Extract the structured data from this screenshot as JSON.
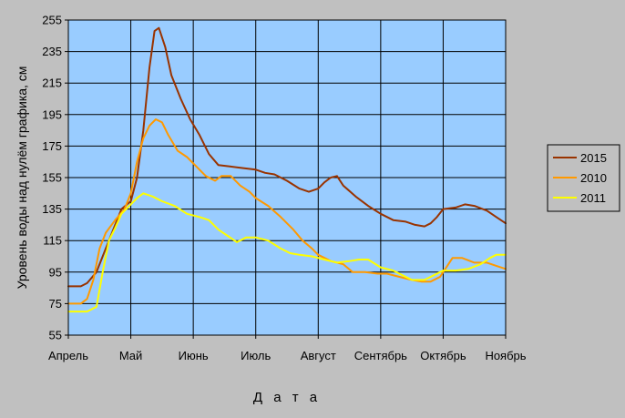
{
  "chart_data": {
    "type": "line",
    "xlabel": "Д а т а",
    "ylabel": "Уровень воды над нулём графика, см",
    "ylim": [
      55,
      255
    ],
    "yticks": [
      55,
      75,
      95,
      115,
      135,
      155,
      175,
      195,
      215,
      235,
      255
    ],
    "xlim": [
      0,
      7
    ],
    "xticks": [
      {
        "value": 0,
        "label": "Апрель"
      },
      {
        "value": 1,
        "label": "Май"
      },
      {
        "value": 2,
        "label": "Июнь"
      },
      {
        "value": 3,
        "label": "Июль"
      },
      {
        "value": 4,
        "label": "Август"
      },
      {
        "value": 5,
        "label": "Сентябрь"
      },
      {
        "value": 6,
        "label": "Октябрь"
      },
      {
        "value": 7,
        "label": "Ноябрь"
      }
    ],
    "grid": true,
    "legend_position": "right",
    "colors": {
      "page_bg": "#c0c0c0",
      "plot_bg": "#99ccff",
      "grid": "#000000"
    },
    "series": [
      {
        "name": "2015",
        "color": "#993300",
        "points": [
          [
            0,
            86
          ],
          [
            0.2,
            86
          ],
          [
            0.3,
            88
          ],
          [
            0.45,
            95
          ],
          [
            0.6,
            110
          ],
          [
            0.75,
            125
          ],
          [
            0.85,
            135
          ],
          [
            1.0,
            140
          ],
          [
            1.1,
            155
          ],
          [
            1.2,
            185
          ],
          [
            1.3,
            225
          ],
          [
            1.38,
            248
          ],
          [
            1.45,
            250
          ],
          [
            1.55,
            238
          ],
          [
            1.65,
            220
          ],
          [
            1.8,
            205
          ],
          [
            1.95,
            192
          ],
          [
            2.1,
            182
          ],
          [
            2.25,
            170
          ],
          [
            2.4,
            163
          ],
          [
            2.6,
            162
          ],
          [
            2.8,
            161
          ],
          [
            3.0,
            160
          ],
          [
            3.15,
            158
          ],
          [
            3.3,
            157
          ],
          [
            3.5,
            153
          ],
          [
            3.7,
            148
          ],
          [
            3.85,
            146
          ],
          [
            4.0,
            148
          ],
          [
            4.1,
            152
          ],
          [
            4.2,
            155
          ],
          [
            4.3,
            156
          ],
          [
            4.4,
            150
          ],
          [
            4.6,
            143
          ],
          [
            4.8,
            137
          ],
          [
            5.0,
            132
          ],
          [
            5.2,
            128
          ],
          [
            5.4,
            127
          ],
          [
            5.55,
            125
          ],
          [
            5.7,
            124
          ],
          [
            5.8,
            126
          ],
          [
            5.9,
            130
          ],
          [
            6.0,
            135
          ],
          [
            6.2,
            136
          ],
          [
            6.35,
            138
          ],
          [
            6.5,
            137
          ],
          [
            6.7,
            134
          ],
          [
            6.85,
            130
          ],
          [
            7.0,
            126
          ]
        ]
      },
      {
        "name": "2010",
        "color": "#ff9900",
        "points": [
          [
            0,
            75
          ],
          [
            0.2,
            75
          ],
          [
            0.3,
            78
          ],
          [
            0.4,
            90
          ],
          [
            0.5,
            110
          ],
          [
            0.6,
            120
          ],
          [
            0.75,
            128
          ],
          [
            0.9,
            135
          ],
          [
            1.0,
            145
          ],
          [
            1.1,
            165
          ],
          [
            1.2,
            180
          ],
          [
            1.3,
            188
          ],
          [
            1.4,
            192
          ],
          [
            1.5,
            190
          ],
          [
            1.6,
            182
          ],
          [
            1.75,
            172
          ],
          [
            1.9,
            168
          ],
          [
            2.05,
            162
          ],
          [
            2.2,
            156
          ],
          [
            2.35,
            153
          ],
          [
            2.45,
            156
          ],
          [
            2.6,
            156
          ],
          [
            2.75,
            150
          ],
          [
            2.9,
            146
          ],
          [
            3.0,
            142
          ],
          [
            3.2,
            137
          ],
          [
            3.4,
            130
          ],
          [
            3.6,
            122
          ],
          [
            3.75,
            115
          ],
          [
            3.9,
            110
          ],
          [
            4.0,
            106
          ],
          [
            4.2,
            102
          ],
          [
            4.4,
            100
          ],
          [
            4.55,
            95
          ],
          [
            4.75,
            95
          ],
          [
            4.95,
            94
          ],
          [
            5.1,
            94
          ],
          [
            5.3,
            92
          ],
          [
            5.5,
            90
          ],
          [
            5.65,
            89
          ],
          [
            5.8,
            89
          ],
          [
            5.95,
            92
          ],
          [
            6.05,
            98
          ],
          [
            6.15,
            104
          ],
          [
            6.3,
            104
          ],
          [
            6.5,
            101
          ],
          [
            6.7,
            101
          ],
          [
            6.85,
            99
          ],
          [
            7.0,
            97
          ]
        ]
      },
      {
        "name": "2011",
        "color": "#ffff00",
        "points": [
          [
            0,
            70
          ],
          [
            0.3,
            70
          ],
          [
            0.45,
            73
          ],
          [
            0.55,
            95
          ],
          [
            0.65,
            115
          ],
          [
            0.75,
            123
          ],
          [
            0.85,
            132
          ],
          [
            1.0,
            138
          ],
          [
            1.1,
            142
          ],
          [
            1.2,
            145
          ],
          [
            1.35,
            143
          ],
          [
            1.5,
            140
          ],
          [
            1.7,
            137
          ],
          [
            1.9,
            132
          ],
          [
            2.1,
            130
          ],
          [
            2.25,
            128
          ],
          [
            2.4,
            122
          ],
          [
            2.55,
            118
          ],
          [
            2.7,
            114
          ],
          [
            2.85,
            117
          ],
          [
            3.0,
            117
          ],
          [
            3.2,
            115
          ],
          [
            3.4,
            110
          ],
          [
            3.55,
            107
          ],
          [
            3.7,
            106
          ],
          [
            3.9,
            105
          ],
          [
            4.1,
            103
          ],
          [
            4.3,
            101
          ],
          [
            4.5,
            102
          ],
          [
            4.65,
            103
          ],
          [
            4.8,
            103
          ],
          [
            5.0,
            98
          ],
          [
            5.2,
            96
          ],
          [
            5.35,
            93
          ],
          [
            5.5,
            90
          ],
          [
            5.7,
            90
          ],
          [
            5.85,
            93
          ],
          [
            6.0,
            96
          ],
          [
            6.2,
            96
          ],
          [
            6.4,
            97
          ],
          [
            6.6,
            100
          ],
          [
            6.75,
            104
          ],
          [
            6.85,
            106
          ],
          [
            7.0,
            106
          ]
        ]
      }
    ]
  }
}
